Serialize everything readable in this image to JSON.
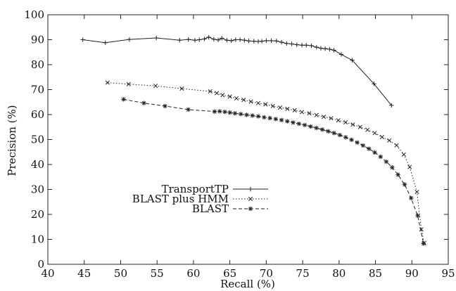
{
  "chart_data": {
    "type": "line",
    "xlabel": "Recall (%)",
    "ylabel": "Precision (%)",
    "xlim": [
      40,
      95
    ],
    "ylim": [
      0,
      100
    ],
    "xticks": [
      "40",
      "45",
      "50",
      "55",
      "60",
      "65",
      "70",
      "75",
      "80",
      "85",
      "90",
      "95"
    ],
    "yticks": [
      "0",
      "10",
      "20",
      "30",
      "40",
      "50",
      "60",
      "70",
      "80",
      "90",
      "100"
    ],
    "grid": false,
    "legend_position": "center-left",
    "series": [
      {
        "name": "TransportTP",
        "marker": "plus",
        "dash": "solid",
        "x": [
          44.8,
          47.9,
          51.2,
          54.9,
          58.1,
          59.3,
          60.2,
          60.8,
          61.5,
          62.1,
          62.8,
          63.4,
          63.9,
          64.6,
          65.2,
          65.8,
          66.4,
          67.0,
          67.6,
          68.3,
          68.9,
          69.4,
          70.0,
          70.7,
          71.4,
          72.1,
          72.8,
          73.5,
          74.2,
          74.9,
          75.5,
          76.2,
          76.9,
          77.5,
          78.1,
          78.7,
          79.3,
          80.3,
          81.8,
          84.8,
          87.2
        ],
        "y": [
          90.0,
          88.8,
          90.1,
          90.7,
          89.8,
          90.1,
          89.8,
          90.0,
          90.3,
          91.0,
          90.2,
          89.9,
          90.6,
          89.8,
          89.6,
          90.0,
          90.0,
          89.8,
          89.5,
          89.4,
          89.3,
          89.4,
          89.6,
          89.6,
          89.5,
          89.0,
          88.5,
          88.3,
          88.0,
          87.8,
          87.8,
          87.6,
          87.0,
          86.6,
          86.4,
          86.2,
          85.8,
          84.1,
          81.8,
          72.3,
          63.7
        ]
      },
      {
        "name": "BLAST plus HMM",
        "marker": "x",
        "dash": "dotted",
        "x": [
          48.2,
          51.1,
          54.8,
          58.4,
          62.3,
          63.2,
          64.0,
          65.0,
          65.9,
          66.9,
          67.9,
          68.9,
          69.9,
          70.9,
          71.9,
          72.9,
          73.9,
          74.9,
          75.9,
          76.9,
          77.9,
          78.9,
          79.9,
          80.9,
          81.9,
          82.9,
          83.9,
          84.9,
          85.9,
          86.9,
          87.9,
          88.9,
          89.7,
          90.7,
          91.3,
          91.7
        ],
        "y": [
          72.8,
          72.2,
          71.5,
          70.4,
          69.3,
          68.6,
          67.8,
          67.2,
          66.5,
          65.9,
          65.2,
          64.6,
          64.1,
          63.4,
          62.8,
          62.3,
          61.7,
          61.0,
          60.5,
          59.8,
          59.1,
          58.5,
          57.7,
          56.9,
          56.0,
          55.0,
          53.9,
          52.6,
          51.0,
          49.6,
          47.7,
          44.0,
          39.0,
          29.0,
          14.0,
          8.5
        ]
      },
      {
        "name": "BLAST",
        "marker": "star",
        "dash": "dashed",
        "x": [
          50.4,
          53.2,
          56.1,
          59.3,
          62.9,
          63.6,
          64.3,
          65.0,
          65.7,
          66.5,
          67.3,
          68.1,
          68.9,
          69.7,
          70.5,
          71.3,
          72.1,
          72.9,
          73.7,
          74.5,
          75.3,
          76.1,
          76.9,
          77.7,
          78.5,
          79.3,
          80.1,
          80.9,
          81.7,
          82.5,
          83.3,
          84.1,
          84.9,
          85.7,
          86.5,
          87.3,
          88.1,
          89.0,
          89.9,
          90.8,
          91.6
        ],
        "y": [
          66.1,
          64.6,
          63.4,
          62.0,
          61.2,
          61.3,
          61.1,
          60.8,
          60.5,
          60.2,
          59.9,
          59.6,
          59.3,
          58.9,
          58.6,
          58.2,
          57.8,
          57.3,
          56.8,
          56.3,
          55.8,
          55.2,
          54.6,
          54.0,
          53.3,
          52.6,
          51.8,
          50.9,
          49.9,
          48.8,
          47.6,
          46.3,
          44.8,
          43.1,
          41.1,
          38.8,
          35.9,
          32.0,
          26.5,
          19.5,
          8.3
        ]
      }
    ]
  }
}
